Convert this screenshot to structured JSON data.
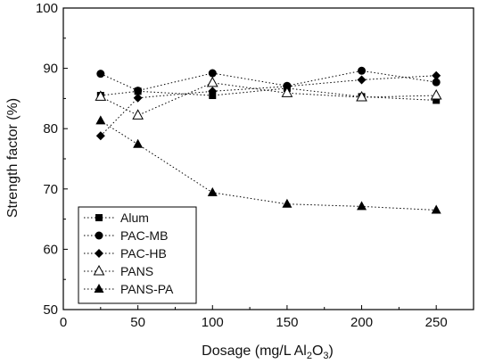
{
  "chart_data": {
    "type": "line",
    "xlabel": {
      "main": "Dosage (mg/L Al",
      "sub": "2",
      "tail": "O",
      "sub2": "3",
      "end": ")"
    },
    "ylabel": "Strength factor (%)",
    "xlim": [
      0,
      275
    ],
    "ylim": [
      50,
      100
    ],
    "xticks": [
      0,
      50,
      100,
      150,
      200,
      250
    ],
    "yticks": [
      50,
      60,
      70,
      80,
      90,
      100
    ],
    "grid": false,
    "legend_position": "bottom-left",
    "line_style": "dotted",
    "x": [
      25,
      50,
      100,
      150,
      200,
      250
    ],
    "series": [
      {
        "name": "Alum",
        "marker": "filled-square",
        "values": [
          85.5,
          86.2,
          85.5,
          86.7,
          85.3,
          84.7
        ]
      },
      {
        "name": "PAC-MB",
        "marker": "filled-circle",
        "values": [
          89.1,
          86.3,
          89.2,
          87.1,
          89.6,
          87.7
        ]
      },
      {
        "name": "PAC-HB",
        "marker": "filled-diamond",
        "values": [
          78.8,
          85.1,
          86.2,
          87.0,
          88.1,
          88.8
        ]
      },
      {
        "name": "PANS",
        "marker": "open-triangle",
        "values": [
          85.3,
          82.2,
          87.6,
          85.9,
          85.2,
          85.5
        ]
      },
      {
        "name": "PANS-PA",
        "marker": "filled-triangle",
        "values": [
          81.3,
          77.4,
          69.4,
          67.5,
          67.1,
          66.5
        ]
      }
    ]
  }
}
